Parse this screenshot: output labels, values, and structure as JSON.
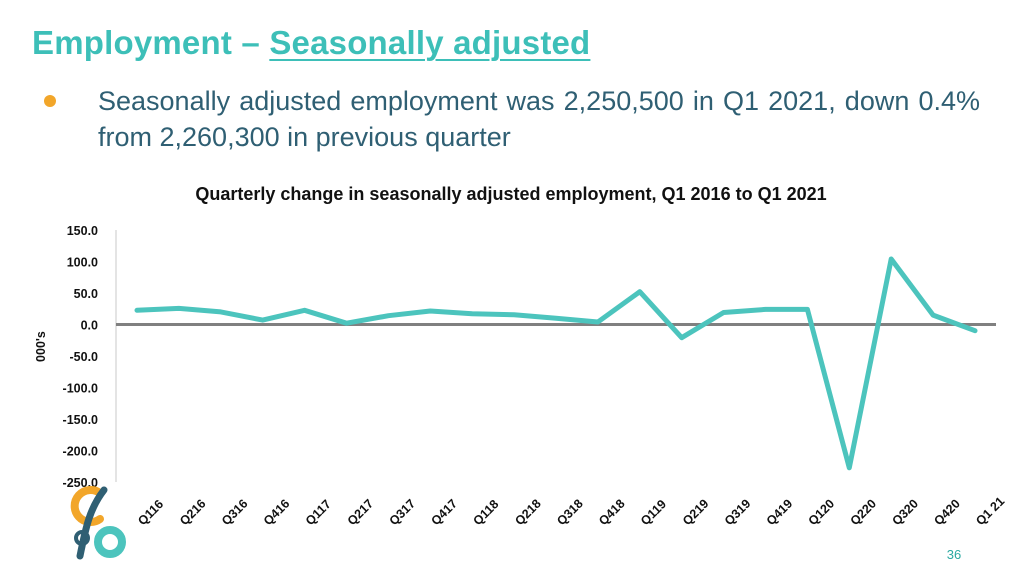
{
  "slide": {
    "title_main": "Employment – ",
    "title_sub": "Seasonally adjusted",
    "bullet": "Seasonally adjusted employment was 2,250,500 in Q1 2021, down 0.4% from 2,260,300 in previous quarter",
    "page_number": "36"
  },
  "colors": {
    "title": "#3dbfb8",
    "bullet_dot": "#f2a62a",
    "bullet_text": "#2f5f73",
    "series_line": "#4cc4bd",
    "zero_line": "#808080",
    "logo_orange": "#f2a62a",
    "logo_teal": "#4cc4bd",
    "logo_navy": "#2f5f73"
  },
  "icons": {
    "logo": "organisation-logo"
  },
  "chart_data": {
    "type": "line",
    "title": "Quarterly change in seasonally adjusted employment, Q1 2016 to Q1 2021",
    "xlabel": "",
    "ylabel": "000's",
    "ylim": [
      -250,
      150
    ],
    "yticks": [
      150,
      100,
      50,
      0,
      -50,
      -100,
      -150,
      -200,
      -250
    ],
    "ytick_labels": [
      "150.0",
      "100.0",
      "50.0",
      "0.0",
      "-50.0",
      "-100.0",
      "-150.0",
      "-200.0",
      "-250.0"
    ],
    "grid": false,
    "categories": [
      "Q116",
      "Q216",
      "Q316",
      "Q416",
      "Q117",
      "Q217",
      "Q317",
      "Q417",
      "Q118",
      "Q218",
      "Q318",
      "Q418",
      "Q119",
      "Q219",
      "Q319",
      "Q419",
      "Q120",
      "Q220",
      "Q320",
      "Q420",
      "Q1 21"
    ],
    "series": [
      {
        "name": "Quarterly change",
        "values": [
          22.5,
          25.5,
          20.0,
          7.0,
          22.5,
          2.0,
          14.0,
          21.5,
          17.0,
          15.5,
          10.0,
          4.0,
          52.0,
          -21.0,
          19.0,
          24.0,
          24.0,
          -227.5,
          104.0,
          15.0,
          -9.8
        ]
      }
    ]
  }
}
